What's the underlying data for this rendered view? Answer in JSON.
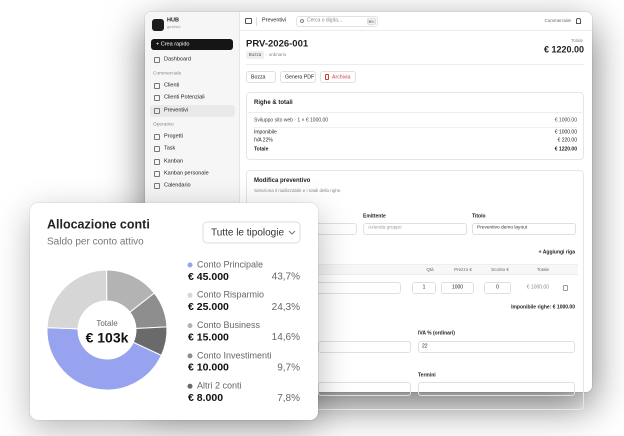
{
  "app": {
    "brand": "HUB",
    "brand_sub": "gestisci",
    "quick_action": "+ Crea rapido",
    "dashboard": "Dashboard",
    "sections": [
      {
        "title": "Commerciale",
        "items": [
          "Clienti",
          "Clienti Potenziali",
          "Preventivi"
        ]
      },
      {
        "title": "Operativo",
        "items": [
          "Progetti",
          "Task",
          "Kanban",
          "Kanban personale",
          "Calendario"
        ]
      }
    ],
    "topbar": {
      "page": "Preventivi",
      "search": "Cerca o digita...",
      "shortcut": "⌘K",
      "user": "Commerciale"
    },
    "quote": {
      "number": "PRV-2026-001",
      "status": "Bozza",
      "kind": "· ordinario",
      "total_label": "Totale",
      "total": "€ 1220.00"
    },
    "actions": [
      "Bozza",
      "Genera PDF",
      "Archivia"
    ],
    "lines": {
      "title": "Righe & totali",
      "item": {
        "label": "Sviluppo sito web · 1 × € 1000.00",
        "amount": "€ 1000.00"
      },
      "summary": [
        {
          "label": "Imponibile",
          "amount": "€ 1000.00"
        },
        {
          "label": "IVA 22%",
          "amount": "€ 220.00"
        },
        {
          "label": "Totale",
          "amount": "€ 1220.00"
        }
      ]
    },
    "edit": {
      "title": "Modifica preventivo",
      "description": "Seleziona il riutilizzabile e i totali della righe.",
      "fields": [
        {
          "label": "Emittente",
          "value": "Azienda gruppo"
        },
        {
          "label": "Titolo",
          "value": "Preventivo demo layout"
        }
      ],
      "add_row": "+ Aggiungi riga",
      "table": {
        "headers": [
          "Qtà",
          "Prezzo €",
          "Sconto €",
          "Totale"
        ],
        "row": [
          "1",
          "1000",
          "0",
          "€ 1000.00"
        ]
      },
      "subtotal": "Imponibile righe: € 1000.00",
      "vat": {
        "label": "IVA % (ordinari)",
        "value": "22"
      },
      "terms": "Termini"
    }
  },
  "chart_data": {
    "type": "pie",
    "title": "Allocazione conti",
    "subtitle": "Saldo per conto attivo",
    "filter": "Tutte le tipologie",
    "center_label": "Totale",
    "center_value": "€ 103k",
    "categories": [
      "Conto Principale",
      "Conto Risparmio",
      "Conto Business",
      "Conto Investimenti",
      "Altri 2 conti"
    ],
    "values": [
      45000,
      25000,
      15000,
      10000,
      8000
    ],
    "value_labels": [
      "€ 45.000",
      "€ 25.000",
      "€ 15.000",
      "€ 10.000",
      "€ 8.000"
    ],
    "percents": [
      43.7,
      24.3,
      14.6,
      9.7,
      7.8
    ],
    "percent_labels": [
      "43,7%",
      "24,3%",
      "14,6%",
      "9,7%",
      "7,8%"
    ],
    "colors": [
      "#97a3ef",
      "#d6d6d6",
      "#b3b3b3",
      "#8e8e8e",
      "#6a6a6a"
    ]
  }
}
